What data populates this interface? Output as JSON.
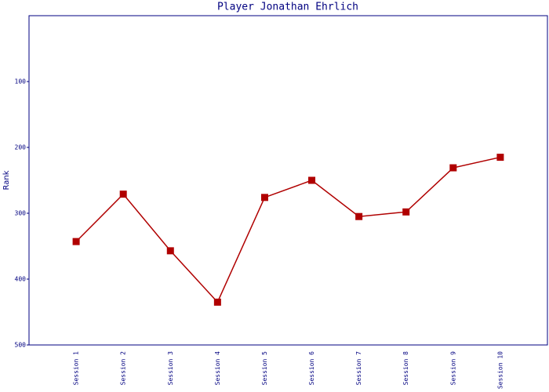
{
  "chart_data": {
    "type": "line",
    "title": "Player Jonathan Ehrlich",
    "y_label": "Rank",
    "categories": [
      "Session 1",
      "Session 2",
      "Session 3",
      "Session 4",
      "Session 5",
      "Session 6",
      "Session 7",
      "Session 8",
      "Session 9",
      "Session 10"
    ],
    "series": [
      {
        "name": "Rank",
        "color": "#b00000",
        "values": [
          343,
          271,
          357,
          435,
          276,
          250,
          305,
          298,
          231,
          215
        ]
      }
    ],
    "ylim": [
      0,
      500
    ],
    "y_inverted": true,
    "yticks": [
      100,
      200,
      300,
      400,
      500
    ],
    "grid": false
  }
}
